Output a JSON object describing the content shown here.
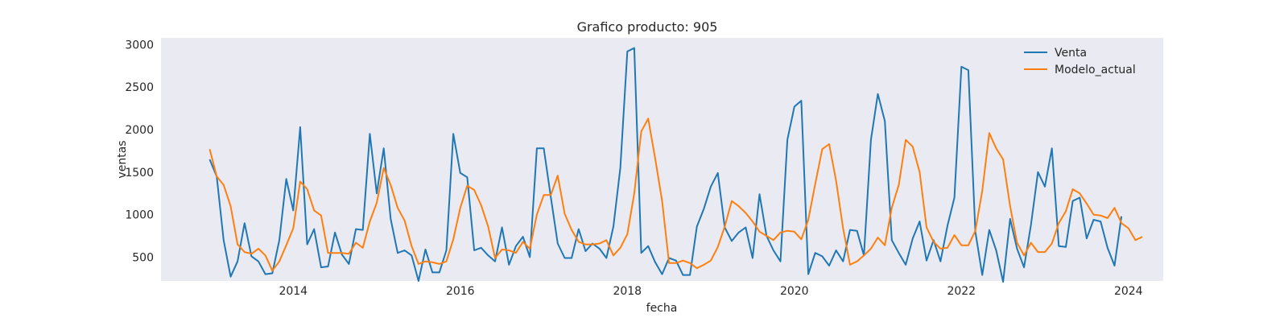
{
  "chart_data": {
    "type": "line",
    "title": "Grafico producto: 905",
    "xlabel": "fecha",
    "ylabel": "ventas",
    "x_start": "2013-01",
    "x_frequency": "monthly",
    "xlim": [
      "2012-06",
      "2024-06"
    ],
    "ylim": [
      220,
      3080
    ],
    "xticks": [
      "2014",
      "2016",
      "2018",
      "2020",
      "2022",
      "2024"
    ],
    "yticks": [
      500,
      1000,
      1500,
      2000,
      2500,
      3000
    ],
    "grid": false,
    "legend": "top-right",
    "plot_background": "#eaeaf2",
    "series": [
      {
        "name": "Venta",
        "color": "#1f77b4",
        "values": [
          1650,
          1450,
          700,
          270,
          450,
          900,
          510,
          450,
          300,
          310,
          700,
          1420,
          1050,
          2030,
          650,
          830,
          380,
          390,
          790,
          530,
          420,
          830,
          820,
          1950,
          1250,
          1780,
          950,
          550,
          580,
          520,
          220,
          590,
          320,
          320,
          580,
          1950,
          1490,
          1440,
          580,
          610,
          520,
          450,
          850,
          410,
          630,
          740,
          500,
          1780,
          1780,
          1210,
          660,
          490,
          490,
          830,
          570,
          660,
          600,
          490,
          860,
          1550,
          2920,
          2960,
          550,
          630,
          440,
          300,
          490,
          460,
          290,
          290,
          860,
          1070,
          1330,
          1490,
          850,
          690,
          790,
          850,
          490,
          1240,
          750,
          580,
          450,
          1880,
          2270,
          2340,
          300,
          550,
          510,
          400,
          580,
          450,
          820,
          810,
          520,
          1880,
          2420,
          2100,
          700,
          550,
          410,
          720,
          920,
          460,
          700,
          450,
          870,
          1200,
          2740,
          2700,
          800,
          290,
          820,
          580,
          210,
          950,
          600,
          380,
          880,
          1500,
          1330,
          1780,
          630,
          620,
          1160,
          1200,
          720,
          940,
          920,
          610,
          400,
          980
        ]
      },
      {
        "name": "Modelo_actual",
        "color": "#ff7f0e",
        "values": [
          1770,
          1450,
          1350,
          1100,
          650,
          560,
          540,
          600,
          520,
          340,
          450,
          640,
          840,
          1390,
          1300,
          1050,
          990,
          550,
          550,
          550,
          540,
          670,
          610,
          920,
          1140,
          1550,
          1350,
          1080,
          930,
          630,
          420,
          450,
          440,
          420,
          450,
          710,
          1080,
          1340,
          1290,
          1110,
          860,
          490,
          590,
          580,
          550,
          680,
          600,
          1000,
          1230,
          1230,
          1460,
          1010,
          820,
          680,
          650,
          650,
          660,
          700,
          520,
          610,
          770,
          1250,
          1980,
          2130,
          1660,
          1160,
          430,
          430,
          460,
          430,
          370,
          410,
          460,
          620,
          860,
          1160,
          1100,
          1020,
          920,
          800,
          750,
          700,
          790,
          810,
          800,
          710,
          940,
          1360,
          1770,
          1830,
          1400,
          840,
          410,
          450,
          520,
          600,
          730,
          640,
          1080,
          1350,
          1880,
          1800,
          1500,
          850,
          680,
          600,
          610,
          760,
          640,
          640,
          810,
          1280,
          1960,
          1780,
          1650,
          1100,
          670,
          520,
          670,
          560,
          560,
          660,
          900,
          1040,
          1300,
          1250,
          1130,
          1000,
          990,
          960,
          1080,
          900,
          840,
          700,
          740
        ]
      }
    ]
  }
}
